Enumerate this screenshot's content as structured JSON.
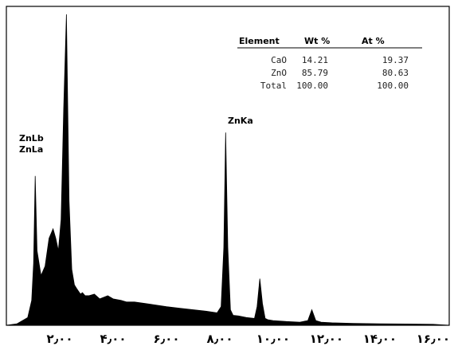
{
  "chart_data": {
    "type": "area",
    "title": "",
    "xlabel": "",
    "ylabel": "",
    "xlim": [
      0.0,
      16.6
    ],
    "ylim": [
      0,
      100
    ],
    "x_tick_labels": [
      "۲٫۰۰",
      "۴٫۰۰",
      "۶٫۰۰",
      "۸٫۰۰",
      "۱۰٫۰۰",
      "۱۲٫۰۰",
      "۱۴٫۰۰",
      "۱۶٫۰۰"
    ],
    "x_ticks": [
      2,
      4,
      6,
      8,
      10,
      12,
      14,
      16
    ],
    "fill_color": "#000000",
    "series": [
      {
        "x": [
          0.0,
          0.4,
          0.8,
          0.95,
          1.02,
          1.08,
          1.15,
          1.3,
          1.45,
          1.6,
          1.75,
          1.85,
          1.95,
          2.05,
          2.15,
          2.25,
          2.35,
          2.45,
          2.55,
          2.62,
          2.7,
          2.78,
          2.85,
          2.95,
          3.1,
          3.3,
          3.5,
          3.8,
          4.0,
          4.3,
          4.5,
          4.8,
          5.2,
          5.6,
          6.0,
          6.5,
          7.0,
          7.5,
          7.9,
          8.05,
          8.15,
          8.22,
          8.3,
          8.4,
          8.5,
          8.7,
          9.0,
          9.3,
          9.4,
          9.5,
          9.6,
          9.7,
          9.8,
          10.0,
          10.5,
          11.0,
          11.3,
          11.45,
          11.6,
          11.8,
          12.2,
          13.0,
          14.0,
          15.0,
          16.0,
          16.6
        ],
        "y": [
          0,
          0.5,
          2.5,
          8,
          20,
          48,
          24,
          16,
          19,
          28,
          31,
          28,
          24,
          34,
          70,
          100,
          40,
          18,
          13,
          12,
          11,
          10,
          10.5,
          9.5,
          9.5,
          10,
          8.5,
          9.5,
          8.5,
          8,
          7.5,
          7.5,
          7,
          6.5,
          6,
          5.5,
          5,
          4.5,
          4,
          6,
          25,
          62,
          25,
          5,
          3.2,
          3,
          2.5,
          2.2,
          6,
          15,
          7,
          2.2,
          1.8,
          1.5,
          1.2,
          1,
          1.5,
          5,
          1.5,
          1,
          0.8,
          0.6,
          0.5,
          0.4,
          0.3,
          0
        ]
      }
    ],
    "peak_labels": [
      {
        "text": "ZnLb",
        "x": 1.08,
        "y": 48
      },
      {
        "text": "ZnLa",
        "x": 1.08,
        "y": 48
      },
      {
        "text": "ZnKa",
        "x": 8.22,
        "y": 62
      }
    ]
  },
  "composition_table": {
    "headers": [
      "Element",
      "Wt %",
      "At %"
    ],
    "rows": [
      [
        "CaO",
        "14.21",
        "19.37"
      ],
      [
        "ZnO",
        "85.79",
        "80.63"
      ],
      [
        "Total",
        "100.00",
        "100.00"
      ]
    ]
  }
}
